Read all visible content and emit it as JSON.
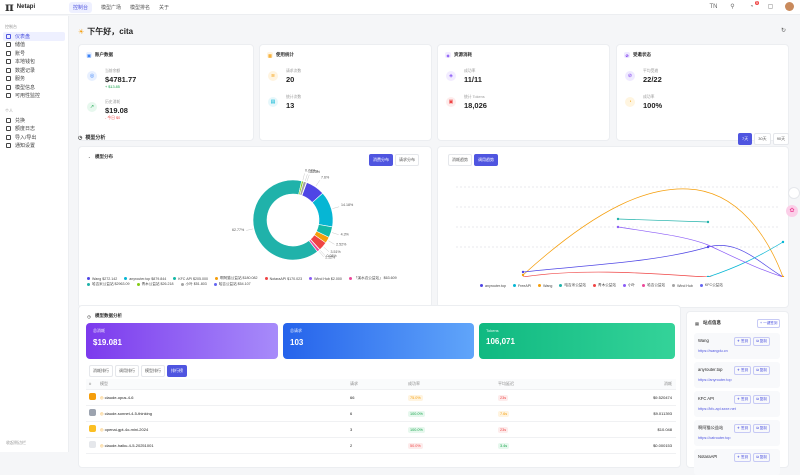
{
  "app": {
    "name": "Netapi"
  },
  "nav": {
    "items": [
      "控制台",
      "模型广场",
      "模型排名",
      "关于"
    ],
    "lang": "TN",
    "notif": "5"
  },
  "sidebar": {
    "group1": "控制台",
    "items1": [
      "仪表盘",
      "储值",
      "账号",
      "本地钱包",
      "数据记录",
      "服务",
      "模型信息",
      "可用性监控"
    ],
    "group2": "个人",
    "items2": [
      "兑换",
      "额度日志",
      "导入/导出",
      "通知设置"
    ],
    "footer": "收起侧边栏"
  },
  "greeting": "下午好，cita",
  "stats": [
    {
      "title": "账户数据",
      "items": [
        {
          "label": "当前余额",
          "value": "$4781.77",
          "sub": "+ $13.85",
          "subColor": "#16a34a",
          "icon": "◎",
          "bg": "#e8f0ff",
          "fg": "#3b82f6"
        },
        {
          "label": "历史消耗",
          "value": "$19.08",
          "sub": "- 今日 $0",
          "subColor": "#ef4444",
          "icon": "↗",
          "bg": "#e7f8ee",
          "fg": "#16a34a"
        }
      ]
    },
    {
      "title": "使用统计",
      "items": [
        {
          "label": "请求次数",
          "value": "20",
          "icon": "≋",
          "bg": "#fff4e0",
          "fg": "#f59e0b"
        },
        {
          "label": "统计次数",
          "value": "13",
          "icon": "▤",
          "bg": "#e6f7fb",
          "fg": "#06b6d4"
        }
      ]
    },
    {
      "title": "资源消耗",
      "items": [
        {
          "label": "成功率",
          "value": "11/11",
          "icon": "◈",
          "bg": "#f2ecff",
          "fg": "#8b5cf6"
        },
        {
          "label": "统计 Tokens",
          "value": "18,026",
          "icon": "▣",
          "bg": "#fdecec",
          "fg": "#ef4444"
        }
      ]
    },
    {
      "title": "受邀状态",
      "items": [
        {
          "label": "平均受邀",
          "value": "22/22",
          "icon": "⊘",
          "bg": "#efeaff",
          "fg": "#7c3aed"
        },
        {
          "label": "成功率",
          "value": "100%",
          "icon": "◔",
          "bg": "#fff5e0",
          "fg": "#f59e0b"
        }
      ]
    }
  ],
  "analysis": {
    "title": "模型分析",
    "range": [
      "7天",
      "30天",
      "90天"
    ]
  },
  "pie": {
    "title": "模型分布",
    "tabs": [
      "消费分布",
      "请求分布"
    ],
    "labels": [
      "7.6%",
      "14.18%",
      "4.3%",
      "2.52%",
      "3.51%",
      "0.08%",
      "1.12%",
      "62.77%",
      "0.74%",
      "1.17%",
      "0.13%"
    ],
    "slices": [
      {
        "v": 7.6,
        "c": "#4f46e5"
      },
      {
        "v": 14.18,
        "c": "#06b6d4"
      },
      {
        "v": 4.3,
        "c": "#14b8a6"
      },
      {
        "v": 2.52,
        "c": "#f59e0b"
      },
      {
        "v": 3.51,
        "c": "#ef4444"
      },
      {
        "v": 0.08,
        "c": "#8b5cf6"
      },
      {
        "v": 1.12,
        "c": "#ec4899"
      },
      {
        "v": 62.77,
        "c": "#20b2aa"
      },
      {
        "v": 0.74,
        "c": "#84cc16"
      },
      {
        "v": 1.17,
        "c": "#a3a3a3"
      },
      {
        "v": 0.13,
        "c": "#6366f1"
      }
    ],
    "legend": [
      {
        "t": "Wang $272.142",
        "c": "#4f46e5"
      },
      {
        "t": "anyrouter.top $879.844",
        "c": "#06b6d4"
      },
      {
        "t": "KFC API $205.000",
        "c": "#14b8a6"
      },
      {
        "t": "啊阿猫公益站 $180.082",
        "c": "#f59e0b"
      },
      {
        "t": "NotaraAPI $170.023",
        "c": "#ef4444"
      },
      {
        "t": "Wind Hub $2.000",
        "c": "#8b5cf6"
      },
      {
        "t": "「溪水边公益站」 $63.609",
        "c": "#ec4899"
      },
      {
        "t": "哈吉米公益站 $2963.09",
        "c": "#20b2aa"
      },
      {
        "t": "青木公益站 $26.218",
        "c": "#84cc16"
      },
      {
        "t": "小叶 $51.803",
        "c": "#a3a3a3"
      },
      {
        "t": "哈吉公益站 $54.107",
        "c": "#6366f1"
      }
    ]
  },
  "trend": {
    "tabs": [
      "消耗趋势",
      "调用趋势"
    ],
    "legend": [
      {
        "t": "anyrouter.top",
        "c": "#4f46e5"
      },
      {
        "t": "FreeAPI",
        "c": "#06b6d4"
      },
      {
        "t": "Wang",
        "c": "#f59e0b"
      },
      {
        "t": "哈吉米公益站",
        "c": "#20b2aa"
      },
      {
        "t": "青木公益站",
        "c": "#ef4444"
      },
      {
        "t": "小叶",
        "c": "#8b5cf6"
      },
      {
        "t": "哈吉公益站",
        "c": "#ec4899"
      },
      {
        "t": "Wind Hub",
        "c": "#a3a3a3"
      },
      {
        "t": "KFC公益站",
        "c": "#6366f1"
      }
    ]
  },
  "usage": {
    "title": "模型数据分析",
    "cards": [
      {
        "label": "总消耗",
        "value": "$19.081",
        "g": "linear-gradient(90deg,#7c3aed,#a78bfa)"
      },
      {
        "label": "总请求",
        "value": "103",
        "g": "linear-gradient(90deg,#2563eb,#60a5fa)"
      },
      {
        "label": "Tokens",
        "value": "106,071",
        "g": "linear-gradient(90deg,#10b981,#34d399)"
      }
    ],
    "tabs": [
      "消耗排行",
      "调用排行",
      "模型排行",
      "排行榜"
    ],
    "cols": [
      "#",
      "模型",
      "请求",
      "成功率",
      "平均延迟",
      "消耗"
    ],
    "rows": [
      {
        "n": "1",
        "m": "claude-opus-4-6",
        "r": "66",
        "s": "75.0%",
        "sc": "#f59e0b",
        "sb": "#fff4e0",
        "l": "23s",
        "lc": "#ef4444",
        "lb": "#fdecec",
        "c": "$9.520474",
        "ib": "#f59e0b"
      },
      {
        "n": "2",
        "m": "claude-sonnet-4-5-thinking",
        "r": "6",
        "s": "100.0%",
        "sc": "#16a34a",
        "sb": "#e7f8ee",
        "l": "7.6s",
        "lc": "#f59e0b",
        "lb": "#fff4e0",
        "c": "$9.011393",
        "ib": "#9ca3af"
      },
      {
        "n": "3",
        "m": "openai-gpt-4o-mini-2024",
        "r": "3",
        "s": "100.0%",
        "sc": "#16a34a",
        "sb": "#e7f8ee",
        "l": "23s",
        "lc": "#ef4444",
        "lb": "#fdecec",
        "c": "$10.048",
        "ib": "#fbbf24"
      },
      {
        "n": "4",
        "m": "claude-haiku-4-5-20251001",
        "r": "2",
        "s": "50.0%",
        "sc": "#ef4444",
        "sb": "#fdecec",
        "l": "3.4s",
        "lc": "#16a34a",
        "lb": "#e7f8ee",
        "c": "$0.000153",
        "ib": "#e5e7eb"
      }
    ]
  },
  "sites": {
    "title": "站点信息",
    "btn": "+ 一键签到",
    "items": [
      {
        "name": "Wang",
        "url": "https://wangdu.cn",
        "b1": "签到",
        "b2": "复制"
      },
      {
        "name": "anyrouter.top",
        "url": "https://anyrouter.top",
        "b1": "签到",
        "b2": "复制"
      },
      {
        "name": "KFC API",
        "url": "https://kfc-api.sxxe.net",
        "b1": "签到",
        "b2": "复制"
      },
      {
        "name": "啊阿猫公益站",
        "url": "https://catrouter.top",
        "b1": "签到",
        "b2": "复制"
      },
      {
        "name": "NotaraAPI",
        "url": "",
        "b1": "签到",
        "b2": "复制"
      }
    ]
  }
}
